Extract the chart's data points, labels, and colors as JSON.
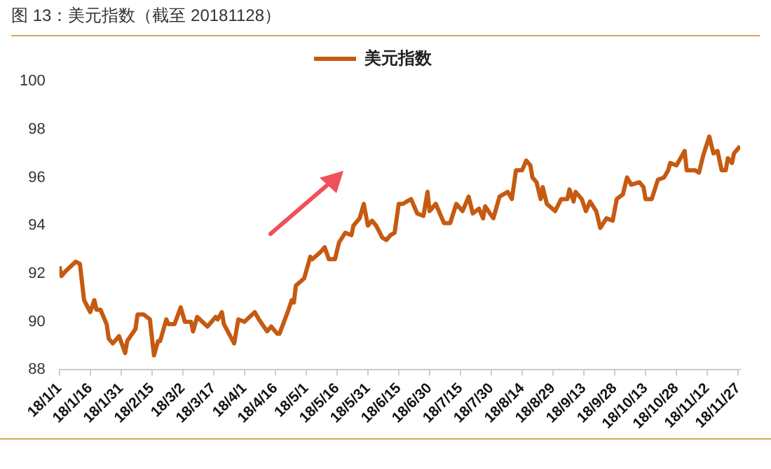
{
  "chart_data": {
    "type": "line",
    "title": "图 13：美元指数（截至 20181128）",
    "x": [
      "2018-01-01",
      "2018-01-02",
      "2018-01-04",
      "2018-01-09",
      "2018-01-11",
      "2018-01-13",
      "2018-01-16",
      "2018-01-18",
      "2018-01-19",
      "2018-01-21",
      "2018-01-24",
      "2018-01-25",
      "2018-01-27",
      "2018-01-30",
      "2018-02-02",
      "2018-02-03",
      "2018-02-07",
      "2018-02-08",
      "2018-02-11",
      "2018-02-14",
      "2018-02-16",
      "2018-02-18",
      "2018-02-19",
      "2018-02-22",
      "2018-02-23",
      "2018-02-26",
      "2018-03-01",
      "2018-03-03",
      "2018-03-06",
      "2018-03-07",
      "2018-03-09",
      "2018-03-14",
      "2018-03-18",
      "2018-03-19",
      "2018-03-21",
      "2018-03-22",
      "2018-03-27",
      "2018-03-29",
      "2018-04-01",
      "2018-04-06",
      "2018-04-08",
      "2018-04-12",
      "2018-04-14",
      "2018-04-17",
      "2018-04-18",
      "2018-04-22",
      "2018-04-24",
      "2018-04-25",
      "2018-04-26",
      "2018-04-30",
      "2018-05-03",
      "2018-05-04",
      "2018-05-08",
      "2018-05-10",
      "2018-05-12",
      "2018-05-15",
      "2018-05-17",
      "2018-05-20",
      "2018-05-23",
      "2018-05-24",
      "2018-05-27",
      "2018-05-29",
      "2018-05-31",
      "2018-06-02",
      "2018-06-04",
      "2018-06-07",
      "2018-06-09",
      "2018-06-11",
      "2018-06-13",
      "2018-06-15",
      "2018-06-17",
      "2018-06-21",
      "2018-06-24",
      "2018-06-27",
      "2018-06-29",
      "2018-06-30",
      "2018-07-03",
      "2018-07-07",
      "2018-07-10",
      "2018-07-13",
      "2018-07-16",
      "2018-07-19",
      "2018-07-21",
      "2018-07-24",
      "2018-07-26",
      "2018-07-27",
      "2018-07-31",
      "2018-08-03",
      "2018-08-07",
      "2018-08-09",
      "2018-08-11",
      "2018-08-14",
      "2018-08-16",
      "2018-08-18",
      "2018-08-19",
      "2018-08-21",
      "2018-08-23",
      "2018-08-24",
      "2018-08-26",
      "2018-08-30",
      "2018-09-02",
      "2018-09-05",
      "2018-09-06",
      "2018-09-08",
      "2018-09-09",
      "2018-09-12",
      "2018-09-14",
      "2018-09-16",
      "2018-09-19",
      "2018-09-21",
      "2018-09-24",
      "2018-09-27",
      "2018-09-29",
      "2018-10-02",
      "2018-10-04",
      "2018-10-06",
      "2018-10-10",
      "2018-10-12",
      "2018-10-13",
      "2018-10-16",
      "2018-10-19",
      "2018-10-22",
      "2018-10-24",
      "2018-10-25",
      "2018-10-28",
      "2018-11-01",
      "2018-11-02",
      "2018-11-06",
      "2018-11-08",
      "2018-11-10",
      "2018-11-13",
      "2018-11-15",
      "2018-11-17",
      "2018-11-19",
      "2018-11-21",
      "2018-11-22",
      "2018-11-24",
      "2018-11-25",
      "2018-11-28"
    ],
    "series": [
      {
        "name": "美元指数",
        "color": "#c55a11",
        "values": [
          92.3,
          91.9,
          92.1,
          92.5,
          92.4,
          90.9,
          90.4,
          90.9,
          90.5,
          90.5,
          89.9,
          89.3,
          89.1,
          89.4,
          88.7,
          89.2,
          89.7,
          90.3,
          90.3,
          90.1,
          88.6,
          89.2,
          89.2,
          90.1,
          89.9,
          89.9,
          90.6,
          90.0,
          90.0,
          89.6,
          90.2,
          89.8,
          90.2,
          90.1,
          90.4,
          89.9,
          89.1,
          90.1,
          90.0,
          90.4,
          90.1,
          89.6,
          89.8,
          89.5,
          89.5,
          90.4,
          90.9,
          90.8,
          91.5,
          91.8,
          92.7,
          92.6,
          92.9,
          93.1,
          92.6,
          92.6,
          93.3,
          93.7,
          93.6,
          94.0,
          94.3,
          94.9,
          94.0,
          94.2,
          94.0,
          93.5,
          93.4,
          93.6,
          93.7,
          94.9,
          94.9,
          95.1,
          94.5,
          94.4,
          95.4,
          94.6,
          94.9,
          94.1,
          94.1,
          94.9,
          94.6,
          95.2,
          94.5,
          94.7,
          94.3,
          94.8,
          94.3,
          95.2,
          95.4,
          95.1,
          96.3,
          96.3,
          96.7,
          96.5,
          96.0,
          95.8,
          95.1,
          95.6,
          94.9,
          94.6,
          95.1,
          95.1,
          95.5,
          95.0,
          95.4,
          95.1,
          94.6,
          95.0,
          94.6,
          93.9,
          94.3,
          94.2,
          95.1,
          95.3,
          96.0,
          95.7,
          95.8,
          95.6,
          95.1,
          95.1,
          95.9,
          96.0,
          96.3,
          96.6,
          96.5,
          97.1,
          96.3,
          96.3,
          96.2,
          96.9,
          97.7,
          97.0,
          97.1,
          96.3,
          96.3,
          96.8,
          96.6,
          97.0,
          97.3
        ]
      }
    ],
    "xlim": [
      "2018-01-01",
      "2018-11-28"
    ],
    "xticks": [
      {
        "value": "2018-01-01",
        "label": "18/1/1"
      },
      {
        "value": "2018-01-16",
        "label": "18/1/16"
      },
      {
        "value": "2018-01-31",
        "label": "18/1/31"
      },
      {
        "value": "2018-02-15",
        "label": "18/2/15"
      },
      {
        "value": "2018-03-02",
        "label": "18/3/2"
      },
      {
        "value": "2018-03-17",
        "label": "18/3/17"
      },
      {
        "value": "2018-04-01",
        "label": "18/4/1"
      },
      {
        "value": "2018-04-16",
        "label": "18/4/16"
      },
      {
        "value": "2018-05-01",
        "label": "18/5/1"
      },
      {
        "value": "2018-05-16",
        "label": "18/5/16"
      },
      {
        "value": "2018-05-31",
        "label": "18/5/31"
      },
      {
        "value": "2018-06-15",
        "label": "18/6/15"
      },
      {
        "value": "2018-06-30",
        "label": "18/6/30"
      },
      {
        "value": "2018-07-15",
        "label": "18/7/15"
      },
      {
        "value": "2018-07-30",
        "label": "18/7/30"
      },
      {
        "value": "2018-08-14",
        "label": "18/8/14"
      },
      {
        "value": "2018-08-29",
        "label": "18/8/29"
      },
      {
        "value": "2018-09-13",
        "label": "18/9/13"
      },
      {
        "value": "2018-09-28",
        "label": "18/9/28"
      },
      {
        "value": "2018-10-13",
        "label": "18/10/13"
      },
      {
        "value": "2018-10-28",
        "label": "18/10/28"
      },
      {
        "value": "2018-11-12",
        "label": "18/11/12"
      },
      {
        "value": "2018-11-27",
        "label": "18/11/27"
      }
    ],
    "ylim": [
      88,
      100
    ],
    "yticks": [
      88,
      90,
      92,
      94,
      96,
      98,
      100
    ],
    "grid": false,
    "legend": "top",
    "marker": "none",
    "line_style": "solid"
  }
}
